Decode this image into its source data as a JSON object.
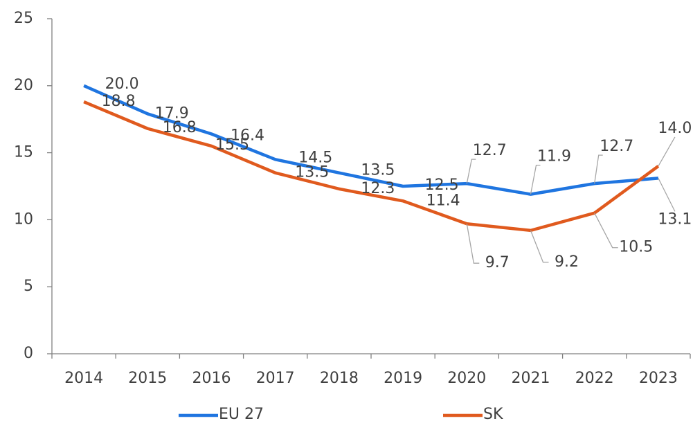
{
  "chart_data": {
    "type": "line",
    "categories": [
      "2014",
      "2015",
      "2016",
      "2017",
      "2018",
      "2019",
      "2020",
      "2021",
      "2022",
      "2023"
    ],
    "series": [
      {
        "name": "EU 27",
        "color": "#1f75e0",
        "values": [
          20.0,
          17.9,
          16.4,
          14.5,
          13.5,
          12.5,
          12.7,
          11.9,
          12.7,
          13.1
        ],
        "value_labels": [
          "20.0",
          "17.9",
          "16.4",
          "14.5",
          "13.5",
          "12.5",
          "12.7",
          "11.9",
          "12.7",
          "13.1"
        ]
      },
      {
        "name": "SK",
        "color": "#e05a1e",
        "values": [
          18.8,
          16.8,
          15.5,
          13.5,
          12.3,
          11.4,
          9.7,
          9.2,
          10.5,
          14.0
        ],
        "value_labels": [
          "18.8",
          "16.8",
          "15.5",
          "13.5",
          "12.3",
          "11.4",
          "9.7",
          "9.2",
          "10.5",
          "14.0"
        ]
      }
    ],
    "ylim": [
      0,
      25
    ],
    "yticks": [
      0,
      5,
      10,
      15,
      20,
      25
    ],
    "legend": "bottom"
  }
}
